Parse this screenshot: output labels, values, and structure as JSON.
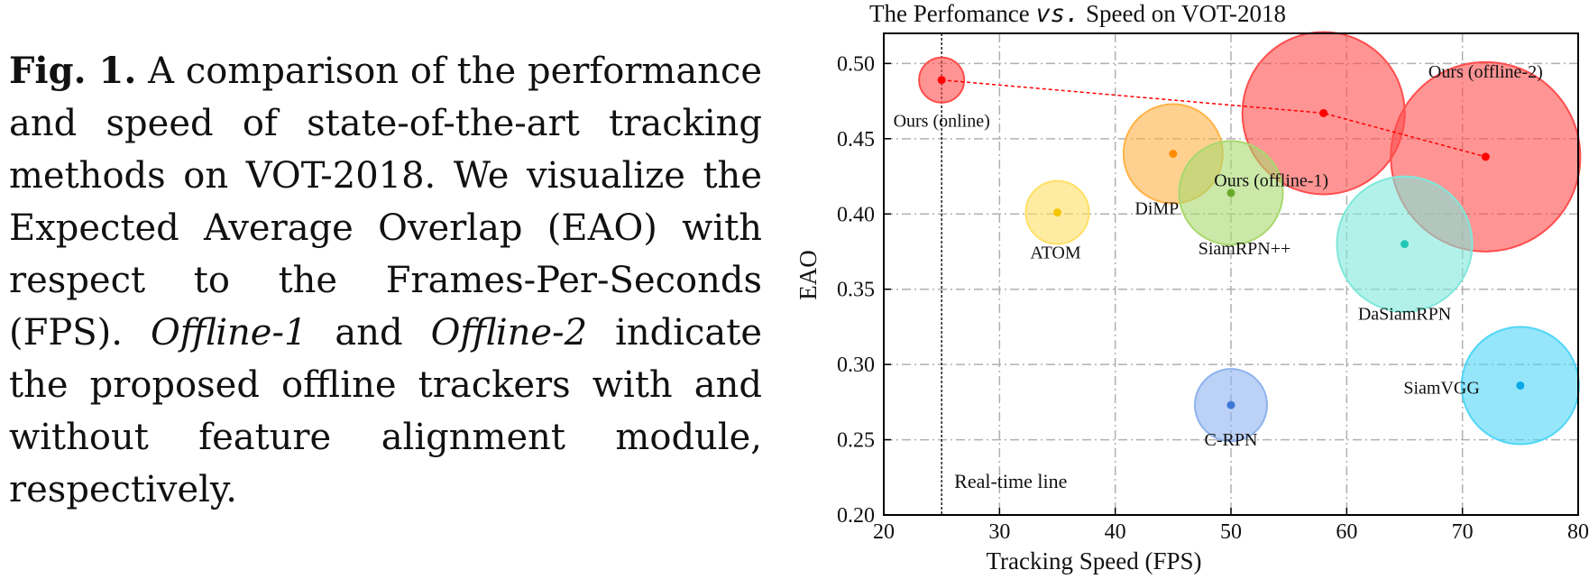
{
  "caption": {
    "fig_label": "Fig. 1.",
    "text_1": "A comparison of the performance and speed of state-of-the-art tracking methods on VOT-2018. We visualize the Expected Average Overlap (EAO) with respect to the Frames-Per-Seconds (FPS).",
    "offline1": "Offline-1",
    "and": "and",
    "offline2": "Offline-2",
    "text_2": "indicate the proposed offline trackers with and without feature alignment module, respectively."
  },
  "chart_data": {
    "type": "scatter",
    "title": "The Perfomance vs. Speed on VOT-2018",
    "title_parts": [
      "The Perfomance ",
      "vs.",
      " Speed on VOT-2018"
    ],
    "xlabel": "Tracking Speed (FPS)",
    "ylabel": "EAO",
    "xlim": [
      20,
      80
    ],
    "ylim": [
      0.2,
      0.52
    ],
    "xticks": [
      20,
      30,
      40,
      50,
      60,
      70,
      80
    ],
    "yticks": [
      0.2,
      0.25,
      0.3,
      0.35,
      0.4,
      0.45,
      0.5
    ],
    "ytick_labels": [
      "0.20",
      "0.25",
      "0.30",
      "0.35",
      "0.40",
      "0.45",
      "0.50"
    ],
    "grid": true,
    "realtime_line": {
      "x": 25,
      "label": "Real-time line"
    },
    "points": [
      {
        "name": "Ours (online)",
        "x": 25,
        "y": 0.489,
        "size": 1,
        "color": "#ff4d4d",
        "dot": "#ff0000"
      },
      {
        "name": "Ours (offline-1)",
        "x": 58,
        "y": 0.467,
        "size": 3.6,
        "color": "#ff4d4d",
        "dot": "#ff0000"
      },
      {
        "name": "Ours (offline-2)",
        "x": 72,
        "y": 0.438,
        "size": 4.2,
        "color": "#ff4d4d",
        "dot": "#ff0000"
      },
      {
        "name": "DiMP",
        "x": 45,
        "y": 0.44,
        "size": 2.2,
        "color": "#ffb347",
        "dot": "#ff8c00"
      },
      {
        "name": "ATOM",
        "x": 35,
        "y": 0.401,
        "size": 1.4,
        "color": "#ffe066",
        "dot": "#f5c400"
      },
      {
        "name": "SiamRPN++",
        "x": 50,
        "y": 0.414,
        "size": 2.3,
        "color": "#a8d86e",
        "dot": "#6aaa2a"
      },
      {
        "name": "DaSiamRPN",
        "x": 65,
        "y": 0.38,
        "size": 3.0,
        "color": "#7ee8da",
        "dot": "#20c9b5"
      },
      {
        "name": "SiamVGG",
        "x": 75,
        "y": 0.286,
        "size": 2.6,
        "color": "#4fd6f7",
        "dot": "#0aa8e8"
      },
      {
        "name": "C-RPN",
        "x": 50,
        "y": 0.273,
        "size": 1.6,
        "color": "#8eb3ee",
        "dot": "#3f78d6"
      }
    ],
    "connect": [
      "Ours (online)",
      "Ours (offline-1)",
      "Ours (offline-2)"
    ]
  }
}
